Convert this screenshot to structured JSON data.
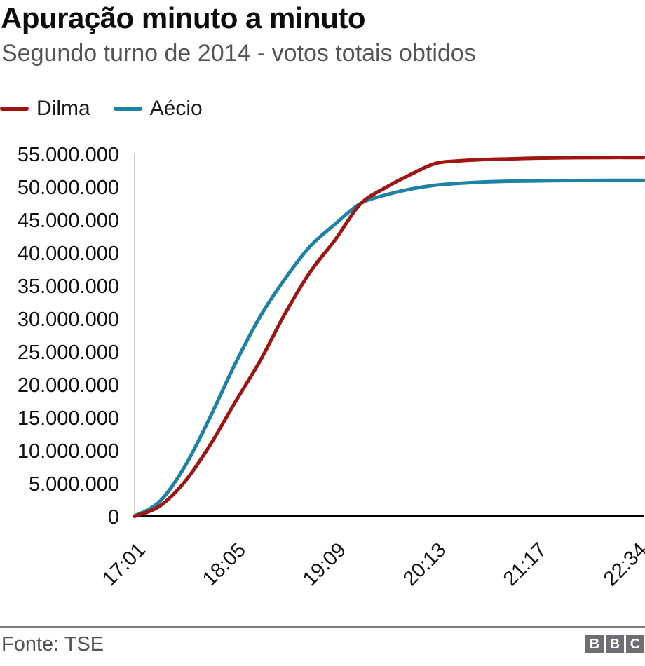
{
  "header": {
    "title": "Apuração minuto a minuto",
    "subtitle": "Segundo turno de 2014 - votos totais obtidos"
  },
  "legend": [
    {
      "label": "Dilma",
      "color": "#9e1511"
    },
    {
      "label": "Aécio",
      "color": "#1d82a3"
    }
  ],
  "chart_data": {
    "type": "line",
    "title": "Apuração minuto a minuto",
    "subtitle": "Segundo turno de 2014 - votos totais obtidos",
    "xlabel": "",
    "ylabel": "",
    "grid": false,
    "legend_position": "top-left",
    "ylim": [
      0,
      55000000
    ],
    "x": [
      "17:01",
      "17:17",
      "17:33",
      "17:49",
      "18:05",
      "18:21",
      "18:37",
      "18:53",
      "19:09",
      "19:25",
      "19:41",
      "19:57",
      "20:13",
      "20:29",
      "20:45",
      "21:01",
      "21:17",
      "21:36",
      "21:56",
      "22:15",
      "22:34"
    ],
    "series": [
      {
        "name": "Dilma",
        "color": "#9e1511",
        "values": [
          50000,
          1600000,
          5300000,
          10800000,
          17300000,
          23600000,
          30800000,
          37100000,
          42000000,
          47400000,
          49900000,
          51900000,
          53600000,
          54000000,
          54200000,
          54300000,
          54400000,
          54450000,
          54480000,
          54500000,
          54500000
        ]
      },
      {
        "name": "Aécio",
        "color": "#1d82a3",
        "values": [
          100000,
          2300000,
          7600000,
          15000000,
          23100000,
          30300000,
          36100000,
          41000000,
          44400000,
          47500000,
          48800000,
          49700000,
          50300000,
          50600000,
          50800000,
          50900000,
          50950000,
          51000000,
          51020000,
          51040000,
          51040000
        ]
      }
    ],
    "yticks": [
      "0",
      "5.000.000",
      "10.000.000",
      "15.000.000",
      "20.000.000",
      "25.000.000",
      "30.000.000",
      "35.000.000",
      "40.000.000",
      "45.000.000",
      "50.000.000",
      "55.000.000"
    ],
    "xticks": [
      "17:01",
      "18:05",
      "19:09",
      "20:13",
      "21:17",
      "22:34"
    ],
    "xtick_indices": [
      0,
      4,
      8,
      12,
      16,
      20
    ]
  },
  "footer": {
    "source": "Fonte: TSE",
    "logo_letters": [
      "B",
      "B",
      "C"
    ]
  }
}
